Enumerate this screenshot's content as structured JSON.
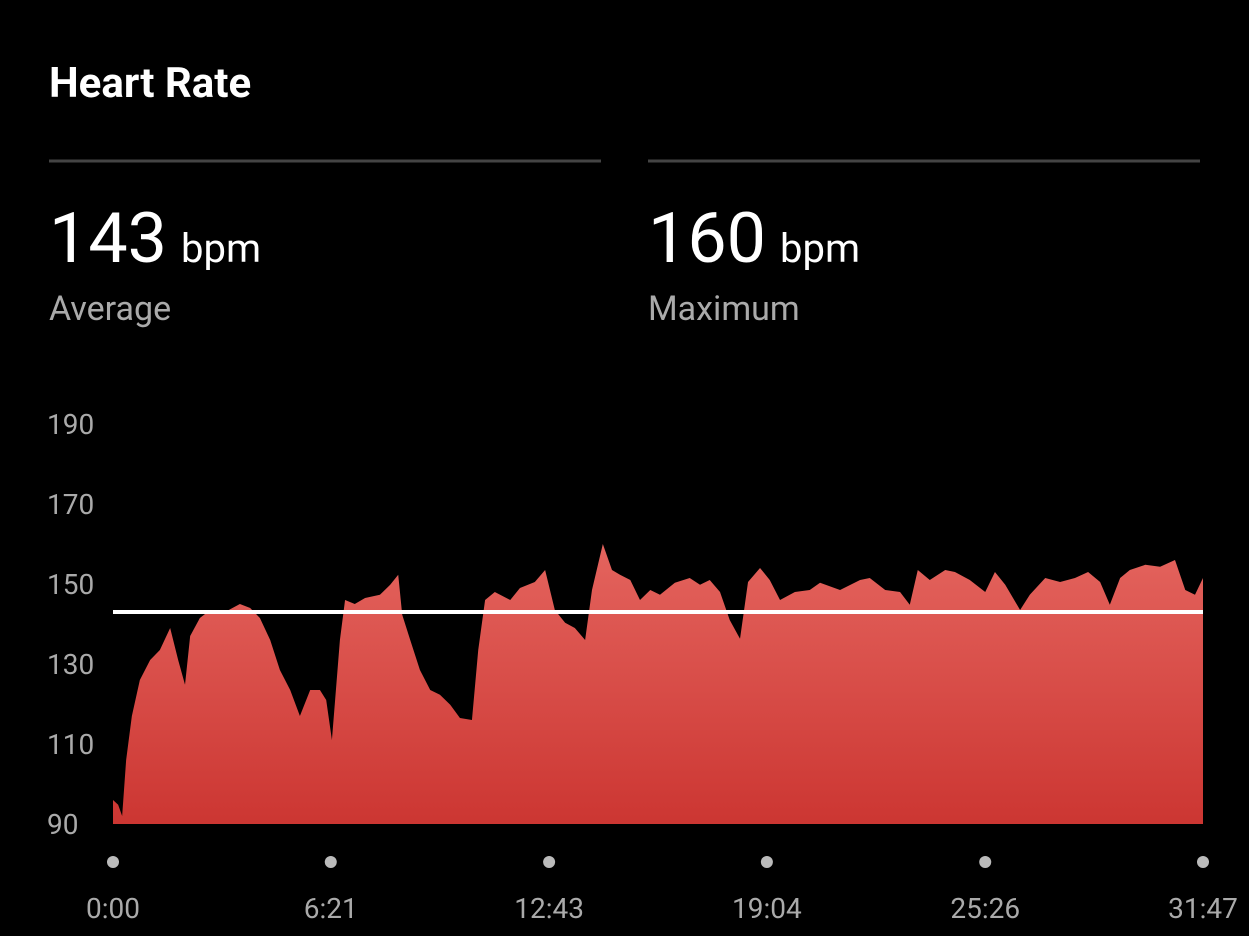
{
  "title": "Heart Rate",
  "stats": [
    {
      "value": 143,
      "unit": "bpm",
      "label": "Average"
    },
    {
      "value": 160,
      "unit": "bpm",
      "label": "Maximum"
    }
  ],
  "chart_data": {
    "type": "area",
    "gradient": [
      "#e4645e",
      "#cc3632"
    ],
    "reference_color": "#ffffff",
    "x": [
      0,
      9,
      16,
      23,
      33,
      47,
      65,
      82,
      100,
      114,
      126,
      135,
      152,
      170,
      196,
      222,
      240,
      257,
      275,
      292,
      310,
      327,
      345,
      362,
      373,
      383,
      397,
      406,
      423,
      441,
      467,
      485,
      499,
      506,
      520,
      537,
      555,
      572,
      590,
      607,
      628,
      639,
      651,
      668,
      695,
      712,
      738,
      756,
      773,
      791,
      808,
      826,
      838,
      857,
      873,
      887,
      905,
      922,
      940,
      957,
      983,
      1009,
      1027,
      1044,
      1062,
      1079,
      1097,
      1111,
      1132,
      1149,
      1167,
      1193,
      1219,
      1237,
      1272,
      1307,
      1324,
      1351,
      1377,
      1394,
      1408,
      1429,
      1456,
      1473,
      1499,
      1526,
      1543,
      1561,
      1587,
      1604,
      1631,
      1657,
      1683,
      1706,
      1727,
      1744,
      1762,
      1779,
      1806,
      1832,
      1858,
      1876,
      1893,
      1907
    ],
    "values": [
      96,
      94.8,
      92,
      106,
      117,
      126,
      131,
      133.5,
      139,
      131,
      124.8,
      137,
      141.5,
      143.5,
      143,
      145,
      144,
      141.5,
      136,
      128.5,
      123.5,
      117,
      123.5,
      123.5,
      121,
      111,
      136,
      146,
      145,
      146.5,
      147.3,
      149.8,
      152.3,
      142.3,
      136,
      128.5,
      123.5,
      122.3,
      119.8,
      116.5,
      116,
      133.5,
      146,
      148,
      146,
      149,
      150.5,
      153.5,
      143.5,
      140.3,
      139,
      136,
      148.5,
      160,
      153.5,
      152.3,
      151,
      146,
      148.5,
      147.3,
      150.3,
      151.5,
      149.8,
      151,
      148,
      141,
      136.3,
      150.5,
      154,
      151,
      146,
      148,
      148.5,
      150.3,
      148.5,
      151,
      151.5,
      148.5,
      148,
      144.8,
      153.5,
      151,
      153.5,
      153,
      151,
      148,
      153,
      149.8,
      143.5,
      147.3,
      151.5,
      150.5,
      151.5,
      153,
      150.5,
      144.8,
      151.5,
      153.5,
      154.8,
      154.3,
      156,
      148.5,
      147.3,
      151.5
    ],
    "xlim": [
      0,
      1907
    ],
    "xticks": [
      {
        "value": 0,
        "label": "0:00"
      },
      {
        "value": 381,
        "label": "6:21"
      },
      {
        "value": 763,
        "label": "12:43"
      },
      {
        "value": 1144,
        "label": "19:04"
      },
      {
        "value": 1526,
        "label": "25:26"
      },
      {
        "value": 1907,
        "label": "31:47"
      }
    ],
    "ylim": [
      90,
      190
    ],
    "yticks": [
      90,
      110,
      130,
      150,
      170,
      190
    ]
  }
}
